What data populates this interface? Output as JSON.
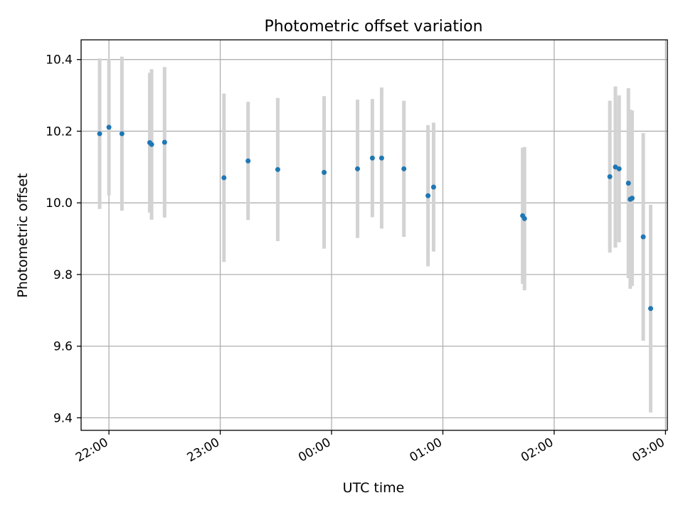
{
  "chart_data": {
    "type": "scatter",
    "title": "Photometric offset variation",
    "xlabel": "UTC time",
    "ylabel": "Photometric offset",
    "x_tick_labels": [
      "22:00",
      "23:00",
      "00:00",
      "01:00",
      "02:00",
      "03:00"
    ],
    "x_tick_times": [
      "21:59",
      "22:59",
      "23:59",
      "00:59",
      "01:59",
      "02:59"
    ],
    "y_tick_labels": [
      "9.4",
      "9.6",
      "9.8",
      "10.0",
      "10.2",
      "10.4"
    ],
    "xlim": [
      "21:44",
      "03:00"
    ],
    "ylim": [
      9.365,
      10.455
    ],
    "grid": true,
    "legend": "none",
    "marker_color": "#1f77b4",
    "errorbar_color": "#d3d3d3",
    "points": [
      {
        "x": "21:54",
        "y": 10.193,
        "yerr": 0.21
      },
      {
        "x": "21:59",
        "y": 10.211,
        "yerr": 0.19
      },
      {
        "x": "22:06",
        "y": 10.193,
        "yerr": 0.215
      },
      {
        "x": "22:21",
        "y": 10.168,
        "yerr": 0.195
      },
      {
        "x": "22:22",
        "y": 10.163,
        "yerr": 0.21
      },
      {
        "x": "22:29",
        "y": 10.169,
        "yerr": 0.21
      },
      {
        "x": "23:01",
        "y": 10.07,
        "yerr": 0.235
      },
      {
        "x": "23:14",
        "y": 10.117,
        "yerr": 0.165
      },
      {
        "x": "23:30",
        "y": 10.093,
        "yerr": 0.2
      },
      {
        "x": "23:55",
        "y": 10.085,
        "yerr": 0.213
      },
      {
        "x": "00:13",
        "y": 10.095,
        "yerr": 0.193
      },
      {
        "x": "00:21",
        "y": 10.125,
        "yerr": 0.165
      },
      {
        "x": "00:26",
        "y": 10.125,
        "yerr": 0.197
      },
      {
        "x": "00:38",
        "y": 10.095,
        "yerr": 0.19
      },
      {
        "x": "00:51",
        "y": 10.02,
        "yerr": 0.197
      },
      {
        "x": "00:54",
        "y": 10.044,
        "yerr": 0.18
      },
      {
        "x": "01:42",
        "y": 9.964,
        "yerr": 0.19
      },
      {
        "x": "01:43",
        "y": 9.956,
        "yerr": 0.2
      },
      {
        "x": "02:29",
        "y": 10.073,
        "yerr": 0.212
      },
      {
        "x": "02:32",
        "y": 10.1,
        "yerr": 0.225
      },
      {
        "x": "02:34",
        "y": 10.095,
        "yerr": 0.205
      },
      {
        "x": "02:39",
        "y": 10.055,
        "yerr": 0.265
      },
      {
        "x": "02:40",
        "y": 10.01,
        "yerr": 0.25
      },
      {
        "x": "02:41",
        "y": 10.013,
        "yerr": 0.245
      },
      {
        "x": "02:47",
        "y": 9.905,
        "yerr": 0.29
      },
      {
        "x": "02:51",
        "y": 9.705,
        "yerr": 0.29
      }
    ]
  }
}
